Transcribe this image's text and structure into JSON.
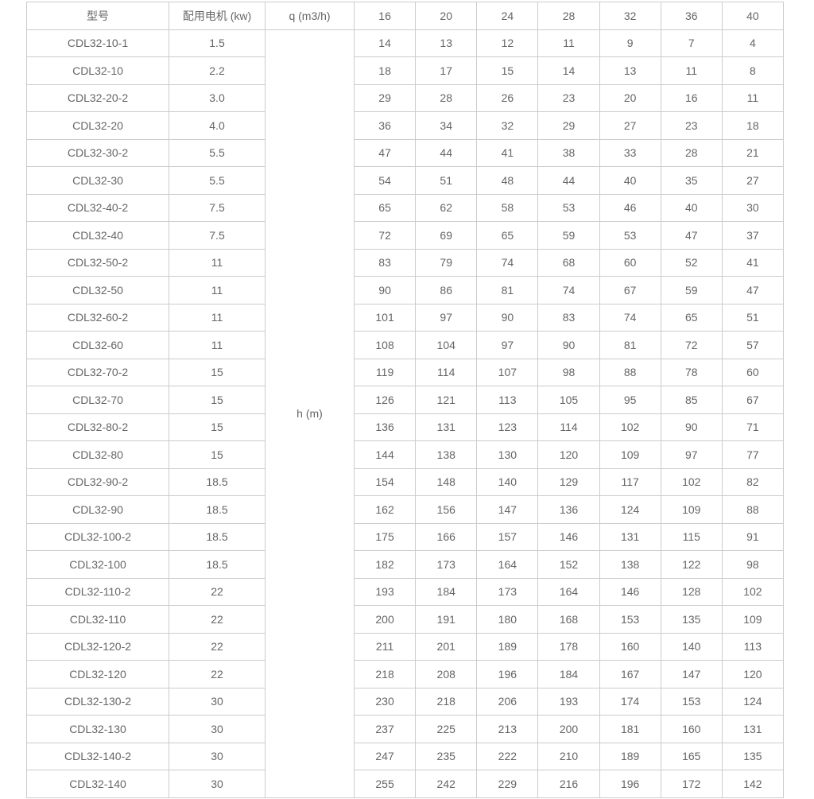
{
  "table": {
    "header": {
      "model": "型号",
      "motor": "配用电机 (kw)",
      "flow": "q (m3/h)",
      "flows": [
        "16",
        "20",
        "24",
        "28",
        "32",
        "36",
        "40"
      ]
    },
    "merged_label": "h (m)",
    "rows": [
      {
        "model": "CDL32-10-1",
        "motor": "1.5",
        "heads": [
          14,
          13,
          12,
          11,
          9,
          7,
          4
        ]
      },
      {
        "model": "CDL32-10",
        "motor": "2.2",
        "heads": [
          18,
          17,
          15,
          14,
          13,
          11,
          8
        ]
      },
      {
        "model": "CDL32-20-2",
        "motor": "3.0",
        "heads": [
          29,
          28,
          26,
          23,
          20,
          16,
          11
        ]
      },
      {
        "model": "CDL32-20",
        "motor": "4.0",
        "heads": [
          36,
          34,
          32,
          29,
          27,
          23,
          18
        ]
      },
      {
        "model": "CDL32-30-2",
        "motor": "5.5",
        "heads": [
          47,
          44,
          41,
          38,
          33,
          28,
          21
        ]
      },
      {
        "model": "CDL32-30",
        "motor": "5.5",
        "heads": [
          54,
          51,
          48,
          44,
          40,
          35,
          27
        ]
      },
      {
        "model": "CDL32-40-2",
        "motor": "7.5",
        "heads": [
          65,
          62,
          58,
          53,
          46,
          40,
          30
        ]
      },
      {
        "model": "CDL32-40",
        "motor": "7.5",
        "heads": [
          72,
          69,
          65,
          59,
          53,
          47,
          37
        ]
      },
      {
        "model": "CDL32-50-2",
        "motor": "11",
        "heads": [
          83,
          79,
          74,
          68,
          60,
          52,
          41
        ]
      },
      {
        "model": "CDL32-50",
        "motor": "11",
        "heads": [
          90,
          86,
          81,
          74,
          67,
          59,
          47
        ]
      },
      {
        "model": "CDL32-60-2",
        "motor": "11",
        "heads": [
          101,
          97,
          90,
          83,
          74,
          65,
          51
        ]
      },
      {
        "model": "CDL32-60",
        "motor": "11",
        "heads": [
          108,
          104,
          97,
          90,
          81,
          72,
          57
        ]
      },
      {
        "model": "CDL32-70-2",
        "motor": "15",
        "heads": [
          119,
          114,
          107,
          98,
          88,
          78,
          60
        ]
      },
      {
        "model": "CDL32-70",
        "motor": "15",
        "heads": [
          126,
          121,
          113,
          105,
          95,
          85,
          67
        ]
      },
      {
        "model": "CDL32-80-2",
        "motor": "15",
        "heads": [
          136,
          131,
          123,
          114,
          102,
          90,
          71
        ]
      },
      {
        "model": "CDL32-80",
        "motor": "15",
        "heads": [
          144,
          138,
          130,
          120,
          109,
          97,
          77
        ]
      },
      {
        "model": "CDL32-90-2",
        "motor": "18.5",
        "heads": [
          154,
          148,
          140,
          129,
          117,
          102,
          82
        ]
      },
      {
        "model": "CDL32-90",
        "motor": "18.5",
        "heads": [
          162,
          156,
          147,
          136,
          124,
          109,
          88
        ]
      },
      {
        "model": "CDL32-100-2",
        "motor": "18.5",
        "heads": [
          175,
          166,
          157,
          146,
          131,
          115,
          91
        ]
      },
      {
        "model": "CDL32-100",
        "motor": "18.5",
        "heads": [
          182,
          173,
          164,
          152,
          138,
          122,
          98
        ]
      },
      {
        "model": "CDL32-110-2",
        "motor": "22",
        "heads": [
          193,
          184,
          173,
          164,
          146,
          128,
          102
        ]
      },
      {
        "model": "CDL32-110",
        "motor": "22",
        "heads": [
          200,
          191,
          180,
          168,
          153,
          135,
          109
        ]
      },
      {
        "model": "CDL32-120-2",
        "motor": "22",
        "heads": [
          211,
          201,
          189,
          178,
          160,
          140,
          113
        ]
      },
      {
        "model": "CDL32-120",
        "motor": "22",
        "heads": [
          218,
          208,
          196,
          184,
          167,
          147,
          120
        ]
      },
      {
        "model": "CDL32-130-2",
        "motor": "30",
        "heads": [
          230,
          218,
          206,
          193,
          174,
          153,
          124
        ]
      },
      {
        "model": "CDL32-130",
        "motor": "30",
        "heads": [
          237,
          225,
          213,
          200,
          181,
          160,
          131
        ]
      },
      {
        "model": "CDL32-140-2",
        "motor": "30",
        "heads": [
          247,
          235,
          222,
          210,
          189,
          165,
          135
        ]
      },
      {
        "model": "CDL32-140",
        "motor": "30",
        "heads": [
          255,
          242,
          229,
          216,
          196,
          172,
          142
        ]
      }
    ]
  },
  "colors": {
    "text": "#666666",
    "border": "#cccccc",
    "background": "#ffffff"
  }
}
